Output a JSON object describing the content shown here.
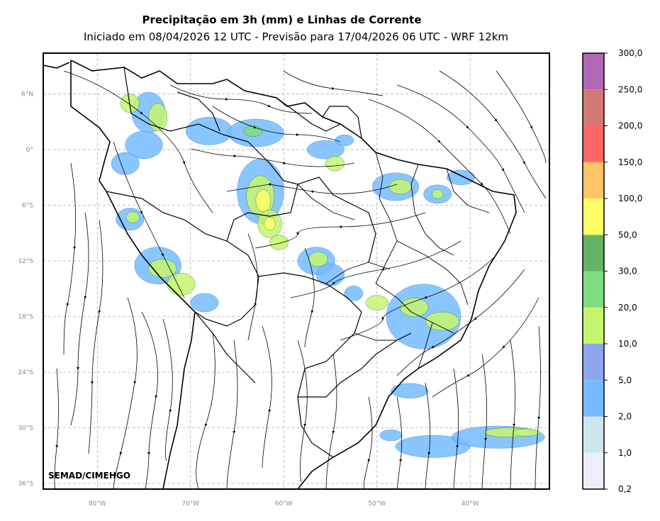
{
  "title": "Precipitação em 3h (mm) e Linhas de Corrente",
  "subtitle": "Iniciado em 08/04/2026 12 UTC - Previsão para 17/04/2026 06 UTC - WRF 12km",
  "credit": "SEMAD/CIMEHGO",
  "map": {
    "lon_range": [
      -85.8,
      -31.5
    ],
    "lat_range": [
      -36.6,
      10.4
    ],
    "lat_ticks": [
      {
        "value": 6,
        "label": "6°N"
      },
      {
        "value": 0,
        "label": "0°"
      },
      {
        "value": -6,
        "label": "6°S"
      },
      {
        "value": -12,
        "label": "12°S"
      },
      {
        "value": -18,
        "label": "18°S"
      },
      {
        "value": -24,
        "label": "24°S"
      },
      {
        "value": -30,
        "label": "30°S"
      },
      {
        "value": -36,
        "label": "36°S"
      }
    ],
    "lon_ticks": [
      {
        "value": -80,
        "label": "80°W"
      },
      {
        "value": -70,
        "label": "70°W"
      },
      {
        "value": -60,
        "label": "60°W"
      },
      {
        "value": -50,
        "label": "50°W"
      },
      {
        "value": -40,
        "label": "40°W"
      }
    ],
    "grid": true
  },
  "colorbar": {
    "labels": [
      "0,2",
      "1,0",
      "2,0",
      "5,0",
      "10,0",
      "20,0",
      "30,0",
      "50,0",
      "100,0",
      "150,0",
      "200,0",
      "250,0",
      "300,0"
    ],
    "colors": [
      "#eeeefa",
      "#cde6ee",
      "#74bbff",
      "#8ea6ef",
      "#c5f46f",
      "#7fdd7f",
      "#66b266",
      "#ffff66",
      "#ffc466",
      "#ff6666",
      "#d47a75",
      "#b266b6"
    ]
  },
  "precip_cells": [
    {
      "lon": -74.5,
      "lat": 4.0,
      "rx": 1.8,
      "ry": 2.2,
      "level": 2
    },
    {
      "lon": -73.5,
      "lat": 3.5,
      "rx": 1.0,
      "ry": 1.5,
      "level": 4
    },
    {
      "lon": -76.5,
      "lat": 5.0,
      "rx": 1.0,
      "ry": 1.0,
      "level": 4
    },
    {
      "lon": -75.0,
      "lat": 0.5,
      "rx": 2.0,
      "ry": 1.5,
      "level": 2
    },
    {
      "lon": -77.0,
      "lat": -1.5,
      "rx": 1.5,
      "ry": 1.2,
      "level": 2
    },
    {
      "lon": -68.0,
      "lat": 2.0,
      "rx": 2.5,
      "ry": 1.5,
      "level": 2
    },
    {
      "lon": -63.0,
      "lat": 1.8,
      "rx": 3.0,
      "ry": 1.5,
      "level": 2
    },
    {
      "lon": -63.3,
      "lat": 2.0,
      "rx": 1.0,
      "ry": 0.6,
      "level": 5
    },
    {
      "lon": -62.5,
      "lat": -4.5,
      "rx": 2.5,
      "ry": 3.5,
      "level": 2
    },
    {
      "lon": -62.5,
      "lat": -5.0,
      "rx": 1.5,
      "ry": 2.2,
      "level": 4
    },
    {
      "lon": -62.2,
      "lat": -5.5,
      "rx": 0.8,
      "ry": 1.2,
      "level": 7
    },
    {
      "lon": -61.5,
      "lat": -8.0,
      "rx": 1.3,
      "ry": 1.5,
      "level": 4
    },
    {
      "lon": -61.5,
      "lat": -8.0,
      "rx": 0.6,
      "ry": 0.7,
      "level": 7
    },
    {
      "lon": -60.5,
      "lat": -10.0,
      "rx": 1.0,
      "ry": 0.8,
      "level": 4
    },
    {
      "lon": -56.5,
      "lat": -12.0,
      "rx": 2.0,
      "ry": 1.5,
      "level": 2
    },
    {
      "lon": -56.3,
      "lat": -11.8,
      "rx": 1.0,
      "ry": 0.8,
      "level": 4
    },
    {
      "lon": -55.0,
      "lat": -13.5,
      "rx": 1.5,
      "ry": 1.2,
      "level": 2
    },
    {
      "lon": -73.5,
      "lat": -12.5,
      "rx": 2.5,
      "ry": 2.0,
      "level": 2
    },
    {
      "lon": -73.0,
      "lat": -12.8,
      "rx": 1.5,
      "ry": 1.0,
      "level": 4
    },
    {
      "lon": -71.0,
      "lat": -14.5,
      "rx": 1.5,
      "ry": 1.2,
      "level": 4
    },
    {
      "lon": -68.5,
      "lat": -16.5,
      "rx": 1.5,
      "ry": 1.0,
      "level": 2
    },
    {
      "lon": -76.5,
      "lat": -7.5,
      "rx": 1.5,
      "ry": 1.2,
      "level": 2
    },
    {
      "lon": -76.2,
      "lat": -7.3,
      "rx": 0.7,
      "ry": 0.6,
      "level": 4
    },
    {
      "lon": -55.5,
      "lat": 0.0,
      "rx": 2.0,
      "ry": 1.0,
      "level": 2
    },
    {
      "lon": -54.5,
      "lat": -1.5,
      "rx": 1.0,
      "ry": 0.8,
      "level": 4
    },
    {
      "lon": -53.5,
      "lat": 1.0,
      "rx": 1.0,
      "ry": 0.6,
      "level": 2
    },
    {
      "lon": -48.0,
      "lat": -4.0,
      "rx": 2.5,
      "ry": 1.5,
      "level": 2
    },
    {
      "lon": -47.5,
      "lat": -4.0,
      "rx": 1.2,
      "ry": 0.8,
      "level": 4
    },
    {
      "lon": -43.5,
      "lat": -4.8,
      "rx": 1.5,
      "ry": 1.0,
      "level": 2
    },
    {
      "lon": -43.5,
      "lat": -4.8,
      "rx": 0.6,
      "ry": 0.5,
      "level": 4
    },
    {
      "lon": -41.0,
      "lat": -3.0,
      "rx": 1.5,
      "ry": 0.8,
      "level": 2
    },
    {
      "lon": -45.0,
      "lat": -18.0,
      "rx": 4.0,
      "ry": 3.5,
      "level": 2
    },
    {
      "lon": -46.0,
      "lat": -17.0,
      "rx": 1.5,
      "ry": 1.0,
      "level": 4
    },
    {
      "lon": -43.0,
      "lat": -18.5,
      "rx": 1.8,
      "ry": 1.0,
      "level": 4
    },
    {
      "lon": -50.0,
      "lat": -16.5,
      "rx": 1.2,
      "ry": 0.8,
      "level": 4
    },
    {
      "lon": -52.5,
      "lat": -15.5,
      "rx": 1.0,
      "ry": 0.8,
      "level": 2
    },
    {
      "lon": -46.5,
      "lat": -26.0,
      "rx": 2.0,
      "ry": 0.8,
      "level": 2
    },
    {
      "lon": -44.0,
      "lat": -32.0,
      "rx": 4.0,
      "ry": 1.2,
      "level": 2
    },
    {
      "lon": -37.0,
      "lat": -31.0,
      "rx": 5.0,
      "ry": 1.2,
      "level": 2
    },
    {
      "lon": -36.0,
      "lat": -30.5,
      "rx": 2.5,
      "ry": 0.5,
      "level": 4
    },
    {
      "lon": -34.0,
      "lat": -30.5,
      "rx": 1.5,
      "ry": 0.4,
      "level": 4
    },
    {
      "lon": -48.5,
      "lat": -30.8,
      "rx": 1.2,
      "ry": 0.6,
      "level": 2
    }
  ]
}
